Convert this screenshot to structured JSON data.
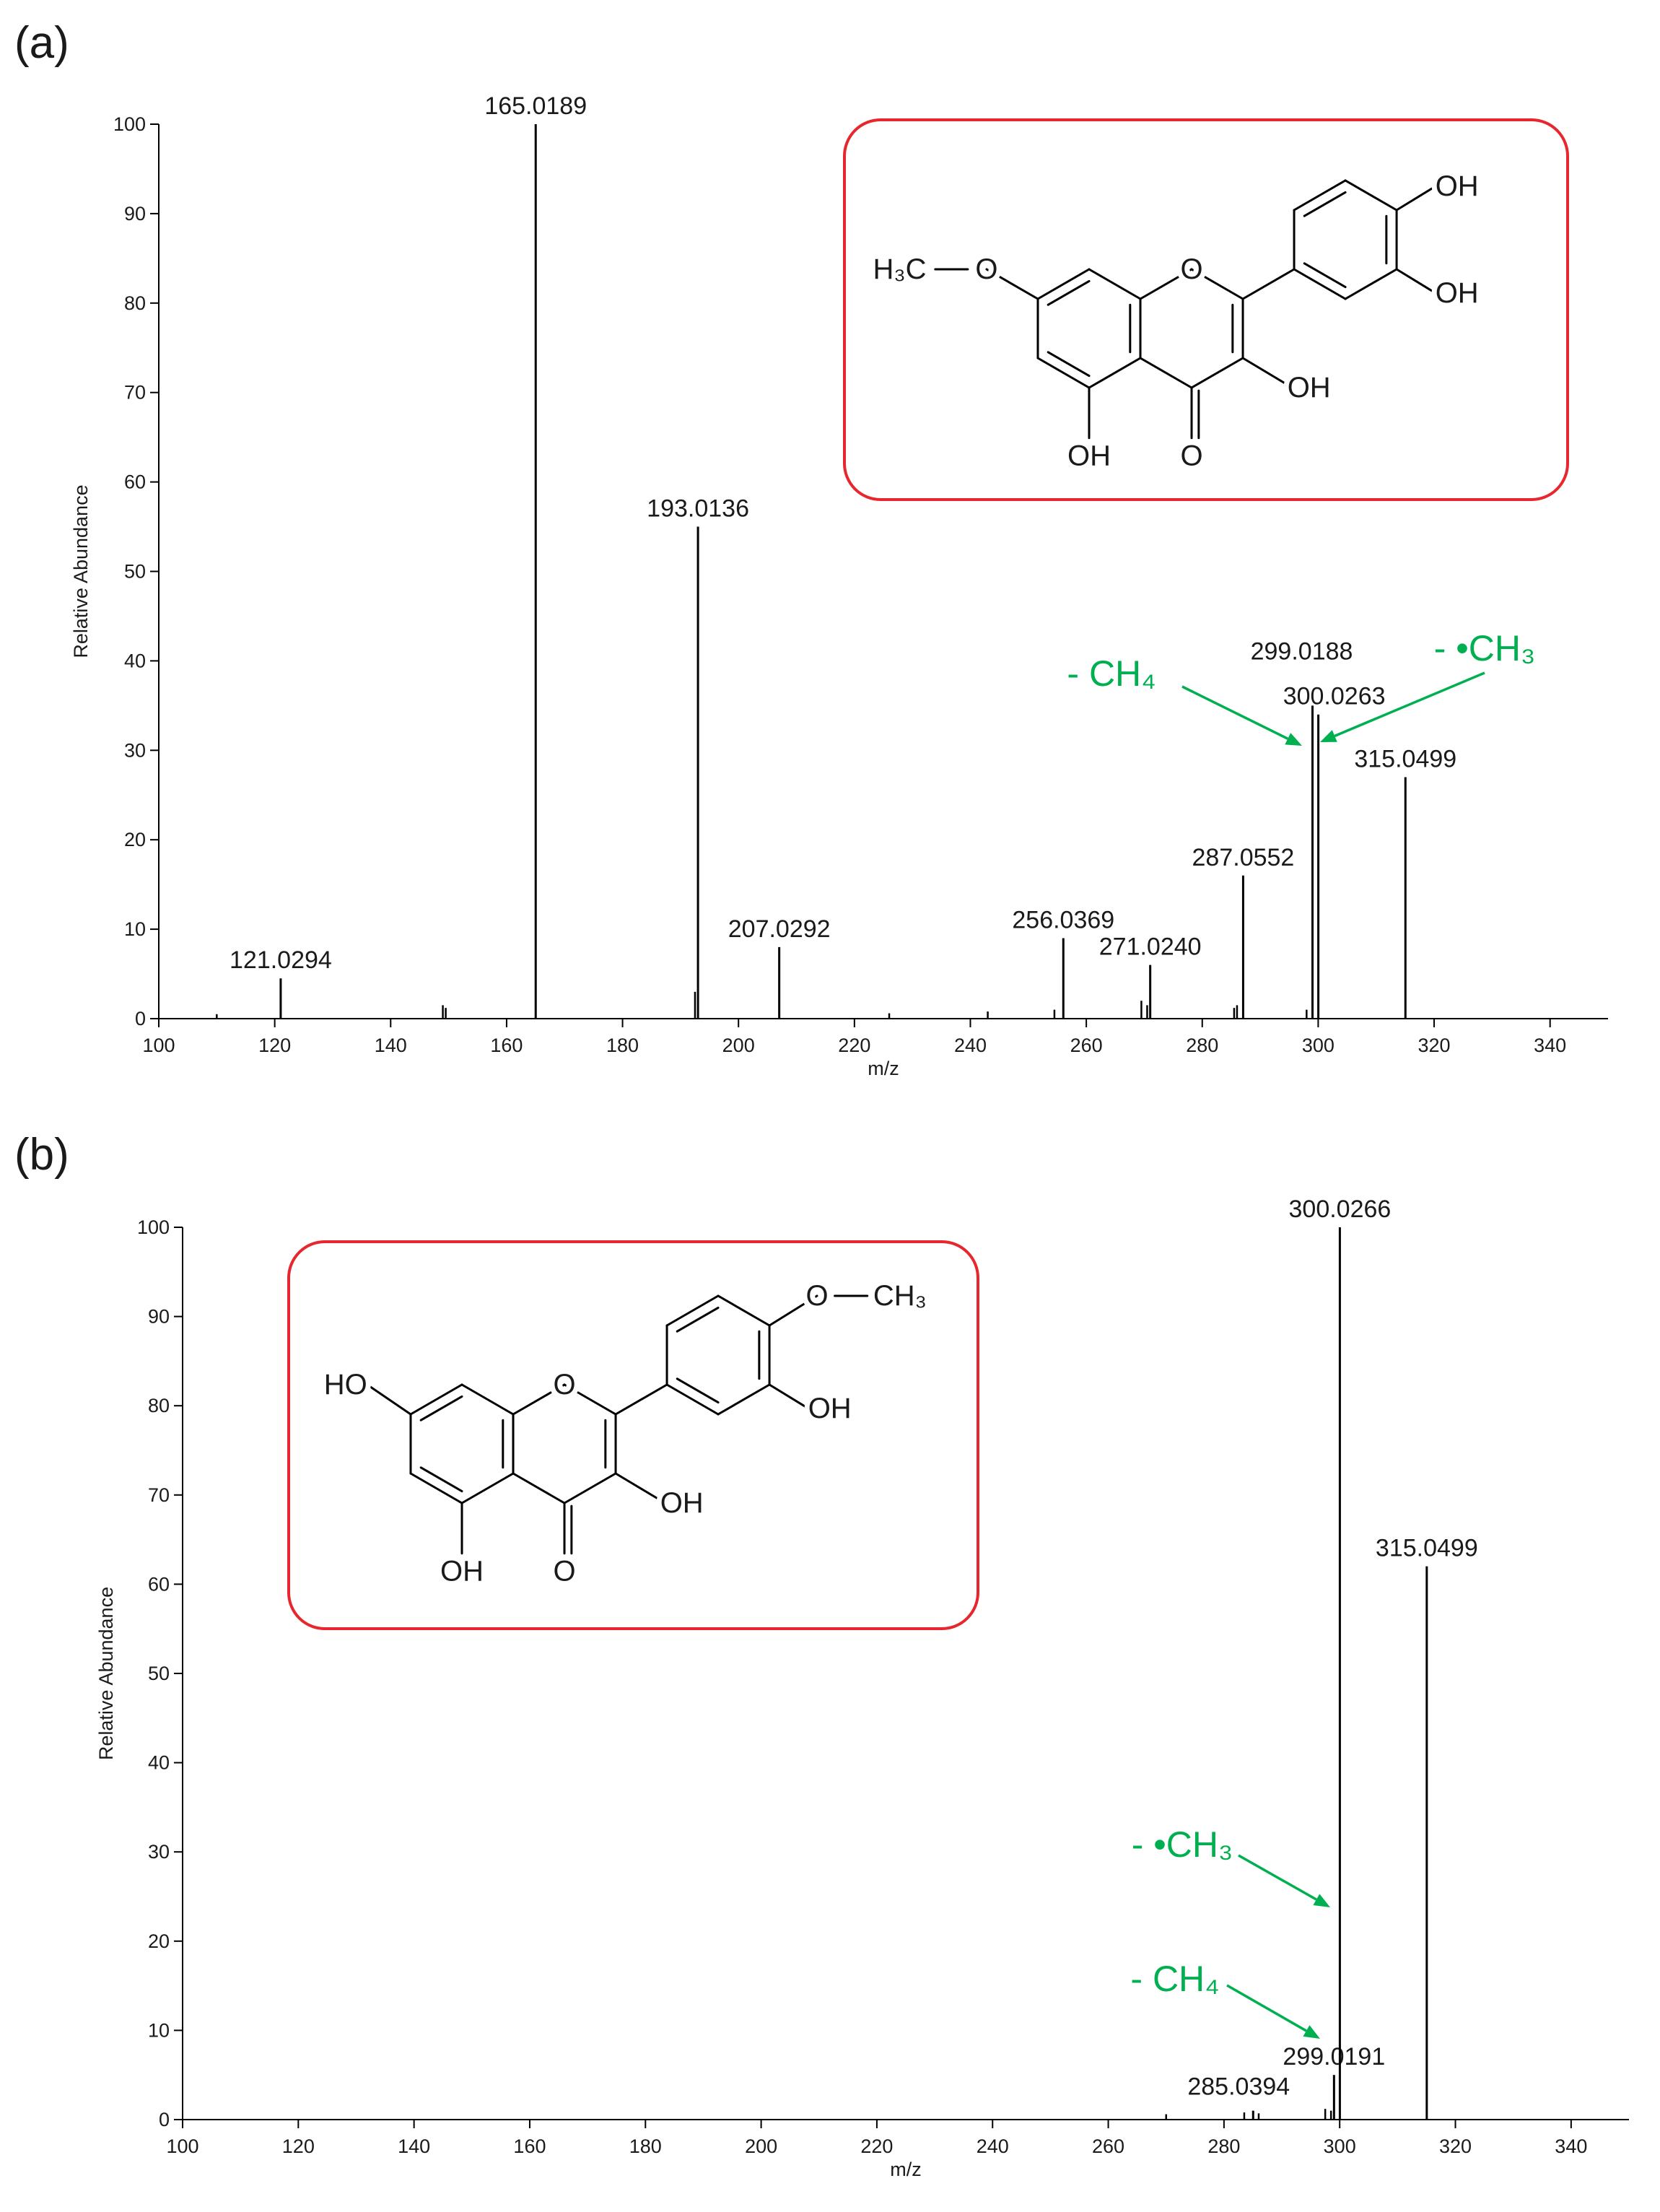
{
  "chart_data": [
    {
      "type": "bar",
      "panel_label": "(a)",
      "xlabel": "m/z",
      "ylabel": "Relative Abundance",
      "x": [
        121.0294,
        165.0189,
        193.0136,
        207.0292,
        256.0369,
        271.024,
        287.0552,
        299.0188,
        300.0263,
        315.0499
      ],
      "x_labels": [
        "121.0294",
        "165.0189",
        "193.0136",
        "207.0292",
        "256.0369",
        "271.0240",
        "287.0552",
        "299.0188",
        "300.0263",
        "315.0499"
      ],
      "values": [
        4.5,
        100,
        55,
        8,
        9,
        6,
        16,
        35,
        34,
        27
      ],
      "minor_peaks": {
        "x": [
          110,
          149,
          149.5,
          192.5,
          226,
          243,
          254.5,
          269.5,
          270.5,
          285.5,
          286,
          298
        ],
        "values": [
          0.5,
          1.5,
          1.2,
          3,
          0.6,
          0.8,
          1,
          2,
          1.5,
          1.2,
          1.5,
          1
        ]
      },
      "color": "#000000",
      "xlim": [
        100,
        350
      ],
      "ylim": [
        0,
        100
      ],
      "xticks": [
        100,
        120,
        140,
        160,
        180,
        200,
        220,
        240,
        260,
        280,
        300,
        320,
        340
      ],
      "yticks": [
        0,
        10,
        20,
        30,
        40,
        50,
        60,
        70,
        80,
        90,
        100
      ],
      "annotations": [
        {
          "text": "- CH₄",
          "color": "#00b050"
        },
        {
          "text": "- •CH₃",
          "color": "#00b050"
        }
      ],
      "structure": [
        "H₃C",
        "O",
        "O",
        "OH",
        "O",
        "OH",
        "OH",
        "OH"
      ],
      "box_color": "#e8262d"
    },
    {
      "type": "bar",
      "panel_label": "(b)",
      "xlabel": "m/z",
      "ylabel": "Relative Abundance",
      "x": [
        285.0394,
        299.0191,
        300.0266,
        315.0499
      ],
      "x_labels": [
        "285.0394",
        "299.0191",
        "300.0266",
        "315.0499"
      ],
      "values": [
        1,
        5,
        100,
        62
      ],
      "minor_peaks": {
        "x": [
          270,
          283.5,
          286,
          297.5,
          298.5
        ],
        "values": [
          0.6,
          0.8,
          0.7,
          1.2,
          1
        ]
      },
      "color": "#000000",
      "xlim": [
        100,
        350
      ],
      "ylim": [
        0,
        100
      ],
      "xticks": [
        100,
        120,
        140,
        160,
        180,
        200,
        220,
        240,
        260,
        280,
        300,
        320,
        340
      ],
      "yticks": [
        0,
        10,
        20,
        30,
        40,
        50,
        60,
        70,
        80,
        90,
        100
      ],
      "annotations": [
        {
          "text": "- •CH₃",
          "color": "#00b050"
        },
        {
          "text": "- CH₄",
          "color": "#00b050"
        }
      ],
      "structure": [
        "HO",
        "O",
        "OH",
        "O",
        "OH",
        "OH",
        "O",
        "CH₃"
      ],
      "box_color": "#e8262d"
    }
  ]
}
